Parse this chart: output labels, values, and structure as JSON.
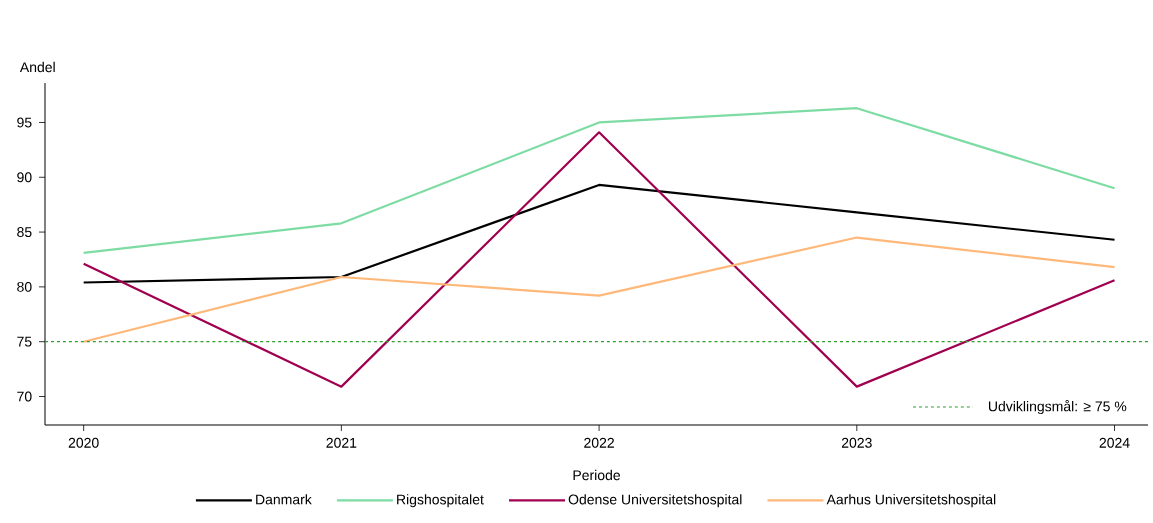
{
  "chart_data": {
    "type": "line",
    "xlabel": "Periode",
    "ylabel": "Andel",
    "x": [
      2020,
      2021,
      2022,
      2023,
      2024
    ],
    "xlim": [
      2019.85,
      2024.13
    ],
    "xticks": [
      2020,
      2021,
      2022,
      2023,
      2024
    ],
    "ylim": [
      67.4,
      98.6
    ],
    "yticks": [
      70,
      75,
      80,
      85,
      90,
      95
    ],
    "grid": false,
    "legend": "bottom",
    "marker": "none",
    "line_style": "solid",
    "series": [
      {
        "name": "Danmark",
        "color": "#000000",
        "values": [
          80.4,
          80.9,
          89.3,
          86.8,
          84.3
        ]
      },
      {
        "name": "Rigshospitalet",
        "color": "#7ddca3",
        "values": [
          83.1,
          85.8,
          95.0,
          96.3,
          89.0
        ]
      },
      {
        "name": "Odense Universitetshospital",
        "color": "#a0004f",
        "values": [
          82.1,
          70.9,
          94.1,
          70.9,
          80.6
        ]
      },
      {
        "name": "Aarhus Universitetshospital",
        "color": "#ffb879",
        "values": [
          75.0,
          80.9,
          79.2,
          84.5,
          81.8
        ]
      }
    ],
    "ref_lines": [
      {
        "axis": "y",
        "value": 75,
        "label": "Udviklingsmål: ≥ 75 %",
        "color": "#2e9e2e",
        "line_style": "dashed"
      }
    ]
  }
}
